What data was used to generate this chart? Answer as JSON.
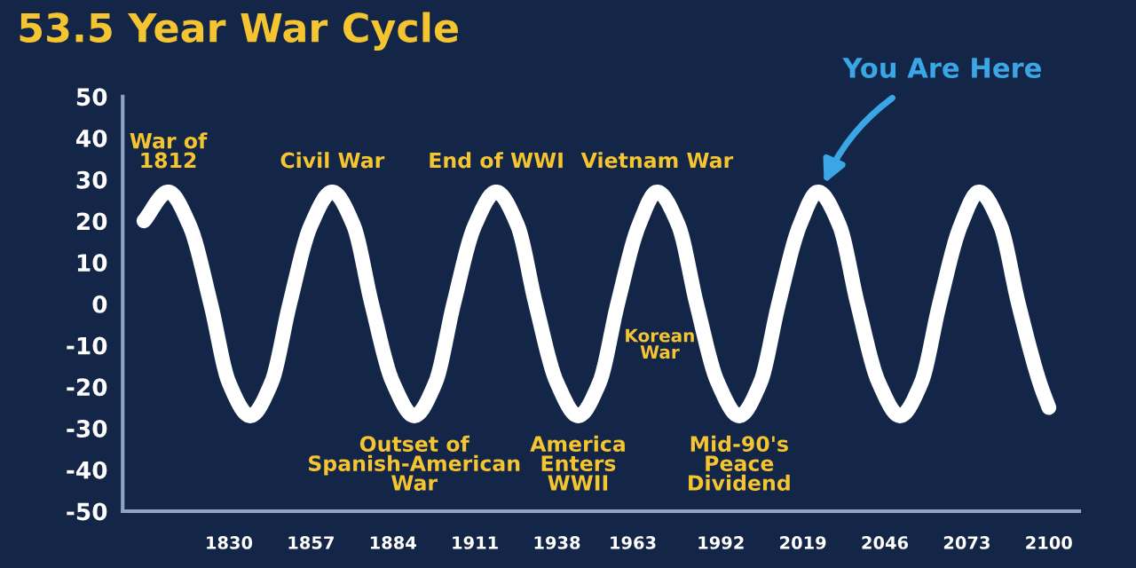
{
  "chart_data": {
    "type": "line",
    "title": "53.5 Year War Cycle",
    "x": [
      1802,
      1810,
      1817,
      1824,
      1830,
      1837,
      1844,
      1850,
      1857,
      1864,
      1871,
      1877,
      1884,
      1891,
      1898,
      1904,
      1911,
      1918,
      1925,
      1931,
      1938,
      1945,
      1952,
      1958,
      1965,
      1971,
      1978,
      1984,
      1991,
      1998,
      2005,
      2011,
      2018,
      2024,
      2031,
      2037,
      2044,
      2051,
      2058,
      2064,
      2071,
      2077,
      2084,
      2090,
      2097,
      2100
    ],
    "series": [
      {
        "color": "#ffffff",
        "values": [
          20,
          27,
          19,
          0,
          -19,
          -27,
          -19,
          0,
          19,
          27,
          19,
          0,
          -19,
          -27,
          -19,
          0,
          19,
          27,
          19,
          0,
          -19,
          -27,
          -19,
          0,
          19,
          27,
          19,
          0,
          -19,
          -27,
          -19,
          0,
          19,
          27,
          19,
          0,
          -19,
          -27,
          -19,
          0,
          19,
          27,
          19,
          0,
          -19,
          -25
        ]
      }
    ],
    "xlim": [
      1795,
      2110
    ],
    "ylim": [
      -50,
      50
    ],
    "xticks": [
      1830,
      1857,
      1884,
      1911,
      1938,
      1963,
      1992,
      2019,
      2046,
      2073,
      2100
    ],
    "yticks": [
      -50,
      -40,
      -30,
      -20,
      -10,
      0,
      10,
      20,
      30,
      40,
      50
    ],
    "grid": false,
    "legend": false,
    "marker": "none",
    "line_style": "solid",
    "annotations": [
      {
        "text": "War of\n1812",
        "x": 1810,
        "y": 27
      },
      {
        "text": "Civil War",
        "x": 1864,
        "y": 27
      },
      {
        "text": "End of WWI",
        "x": 1918,
        "y": 27
      },
      {
        "text": "Vietnam War",
        "x": 1971,
        "y": 27
      },
      {
        "text": "Outset of\nSpanish-American\nWar",
        "x": 1891,
        "y": -27
      },
      {
        "text": "America\nEnters\nWWII",
        "x": 1945,
        "y": -27
      },
      {
        "text": "Korean\nWar",
        "x": 1954,
        "y": -10
      },
      {
        "text": "Mid-90's\nPeace\nDividend",
        "x": 1998,
        "y": -27
      },
      {
        "text": "You Are Here",
        "x": 2026,
        "y": 29
      }
    ]
  }
}
